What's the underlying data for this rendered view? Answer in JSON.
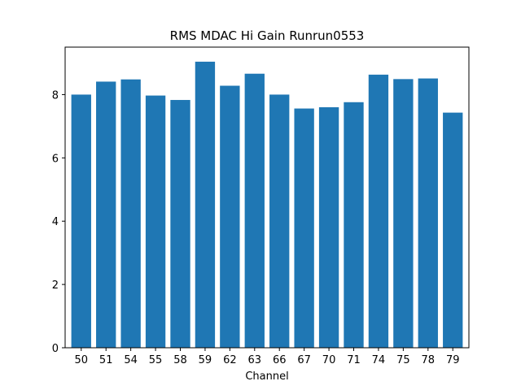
{
  "chart_data": {
    "type": "bar",
    "title": "RMS MDAC Hi Gain Runrun0553",
    "xlabel": "Channel",
    "ylabel": "",
    "categories": [
      "50",
      "51",
      "54",
      "55",
      "58",
      "59",
      "62",
      "63",
      "66",
      "67",
      "70",
      "71",
      "74",
      "75",
      "78",
      "79"
    ],
    "values": [
      8.0,
      8.41,
      8.48,
      7.97,
      7.83,
      9.04,
      8.28,
      8.66,
      8.0,
      7.56,
      7.6,
      7.76,
      8.63,
      8.49,
      8.51,
      7.43
    ],
    "ylim": [
      0,
      9.5
    ],
    "yticks": [
      "0",
      "2",
      "4",
      "6",
      "8"
    ],
    "bar_color": "#1f77b4",
    "grid": false,
    "legend": "none"
  }
}
